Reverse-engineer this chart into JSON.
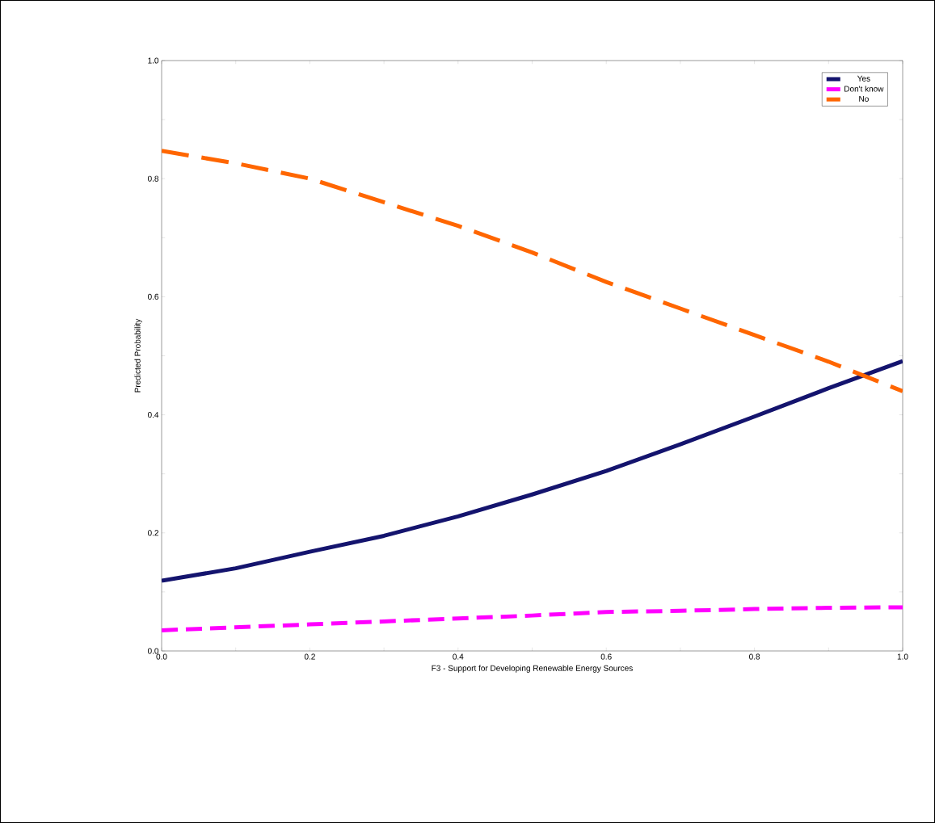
{
  "chart_data": {
    "type": "line",
    "xlabel": "F3 - Support for Developing Renewable Energy Sources",
    "ylabel": "Predicted Probability",
    "x": [
      0,
      0.1,
      0.2,
      0.3,
      0.4,
      0.5,
      0.6,
      0.7,
      0.8,
      0.9,
      1.0
    ],
    "series": [
      {
        "name": "Yes",
        "color": "#14146e",
        "line_style": "solid",
        "values": [
          0.119,
          0.14,
          0.168,
          0.195,
          0.228,
          0.265,
          0.305,
          0.35,
          0.397,
          0.445,
          0.491
        ]
      },
      {
        "name": "Don't know",
        "color": "#ff00ff",
        "line_style": "dashed",
        "values": [
          0.035,
          0.04,
          0.045,
          0.05,
          0.055,
          0.06,
          0.066,
          0.068,
          0.071,
          0.073,
          0.074
        ]
      },
      {
        "name": "No",
        "color": "#ff6600",
        "line_style": "dashed",
        "values": [
          0.847,
          0.826,
          0.8,
          0.76,
          0.72,
          0.675,
          0.625,
          0.58,
          0.535,
          0.49,
          0.44
        ]
      }
    ],
    "xlim": [
      0,
      1.0
    ],
    "ylim": [
      0,
      1.0
    ],
    "xticks": [
      {
        "value": 0,
        "label": "0.0"
      },
      {
        "value": 0.1,
        "label": null
      },
      {
        "value": 0.2,
        "label": "0.2"
      },
      {
        "value": 0.3,
        "label": null
      },
      {
        "value": 0.4,
        "label": "0.4"
      },
      {
        "value": 0.5,
        "label": null
      },
      {
        "value": 0.6,
        "label": "0.6"
      },
      {
        "value": 0.7,
        "label": null
      },
      {
        "value": 0.8,
        "label": "0.8"
      },
      {
        "value": 0.9,
        "label": null
      },
      {
        "value": 1.0,
        "label": "1.0"
      }
    ],
    "yticks": [
      {
        "value": 0,
        "label": "0.0"
      },
      {
        "value": 0.1,
        "label": null
      },
      {
        "value": 0.2,
        "label": "0.2"
      },
      {
        "value": 0.3,
        "label": null
      },
      {
        "value": 0.4,
        "label": "0.4"
      },
      {
        "value": 0.5,
        "label": null
      },
      {
        "value": 0.6,
        "label": "0.6"
      },
      {
        "value": 0.7,
        "label": null
      },
      {
        "value": 0.8,
        "label": "0.8"
      },
      {
        "value": 0.9,
        "label": null
      },
      {
        "value": 1.0,
        "label": "1.0"
      }
    ],
    "legend": "top right",
    "grid": false,
    "marker": "none"
  }
}
